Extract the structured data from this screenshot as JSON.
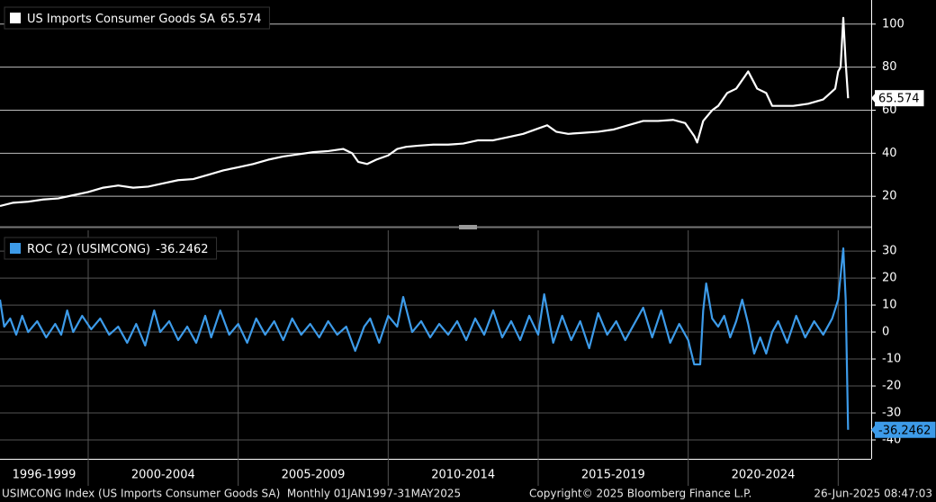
{
  "chart_data": [
    {
      "type": "line",
      "series": [
        {
          "name": "US Imports Consumer Goods SA",
          "color": "#ffffff",
          "x": [
            1997.06,
            1997.5,
            1998.0,
            1998.5,
            1999.0,
            1999.5,
            2000.0,
            2000.5,
            2001.0,
            2001.5,
            2002.0,
            2002.5,
            2003.0,
            2003.5,
            2004.0,
            2004.5,
            2005.0,
            2005.5,
            2006.0,
            2006.5,
            2007.0,
            2007.5,
            2008.0,
            2008.5,
            2008.8,
            2009.0,
            2009.3,
            2009.6,
            2010.0,
            2010.3,
            2010.6,
            2011.0,
            2011.5,
            2012.0,
            2012.5,
            2013.0,
            2013.5,
            2014.0,
            2014.5,
            2015.0,
            2015.3,
            2015.6,
            2016.0,
            2016.5,
            2017.0,
            2017.5,
            2018.0,
            2018.5,
            2019.0,
            2019.5,
            2019.9,
            2020.2,
            2020.3,
            2020.5,
            2020.8,
            2021.0,
            2021.3,
            2021.6,
            2021.9,
            2022.0,
            2022.3,
            2022.6,
            2022.8,
            2023.0,
            2023.5,
            2024.0,
            2024.5,
            2024.9,
            2025.0,
            2025.08,
            2025.17,
            2025.25,
            2025.33
          ],
          "values": [
            15.5,
            17,
            17.5,
            18.5,
            19,
            20.5,
            22,
            24,
            25,
            24,
            24.5,
            26,
            27.5,
            28,
            30,
            32,
            33.5,
            35,
            37,
            38.5,
            39.5,
            40.5,
            41,
            42,
            40,
            36,
            35,
            37,
            39,
            42,
            43,
            43.5,
            44,
            44,
            44.5,
            46,
            46,
            47.5,
            49,
            51.5,
            53,
            50,
            49,
            49.5,
            50,
            51,
            53,
            55,
            55,
            55.5,
            54,
            48,
            45,
            55,
            60,
            62,
            68,
            70,
            76,
            78,
            70,
            68,
            62,
            62,
            62,
            63,
            65,
            70,
            78,
            80,
            102.9,
            82,
            65.574
          ]
        }
      ],
      "xlim": [
        1997.06,
        2026.1
      ],
      "ylim": [
        6.7,
        111.2
      ],
      "yticks": [
        20,
        40,
        60,
        80,
        100
      ],
      "grid": true
    },
    {
      "type": "line",
      "series": [
        {
          "name": "ROC (2) (USIMCONG)",
          "color": "#3d9be9",
          "x": [
            1997.06,
            1997.2,
            1997.4,
            1997.6,
            1997.8,
            1998.0,
            1998.3,
            1998.6,
            1998.9,
            1999.1,
            1999.3,
            1999.5,
            1999.8,
            2000.1,
            2000.4,
            2000.7,
            2001.0,
            2001.3,
            2001.6,
            2001.9,
            2002.2,
            2002.4,
            2002.7,
            2003.0,
            2003.3,
            2003.6,
            2003.9,
            2004.1,
            2004.4,
            2004.7,
            2005.0,
            2005.3,
            2005.6,
            2005.9,
            2006.2,
            2006.5,
            2006.8,
            2007.1,
            2007.4,
            2007.7,
            2008.0,
            2008.3,
            2008.6,
            2008.9,
            2009.2,
            2009.4,
            2009.7,
            2010.0,
            2010.3,
            2010.5,
            2010.8,
            2011.1,
            2011.4,
            2011.7,
            2012.0,
            2012.3,
            2012.6,
            2012.9,
            2013.2,
            2013.5,
            2013.8,
            2014.1,
            2014.4,
            2014.7,
            2015.0,
            2015.2,
            2015.5,
            2015.8,
            2016.1,
            2016.4,
            2016.7,
            2017.0,
            2017.3,
            2017.6,
            2017.9,
            2018.2,
            2018.5,
            2018.8,
            2019.1,
            2019.4,
            2019.7,
            2020.0,
            2020.2,
            2020.4,
            2020.5,
            2020.6,
            2020.8,
            2021.0,
            2021.2,
            2021.4,
            2021.6,
            2021.8,
            2022.0,
            2022.2,
            2022.4,
            2022.6,
            2022.8,
            2023.0,
            2023.3,
            2023.6,
            2023.9,
            2024.2,
            2024.5,
            2024.8,
            2025.0,
            2025.17,
            2025.25,
            2025.33
          ],
          "values": [
            12,
            2,
            5,
            -1,
            6,
            0,
            4,
            -2,
            3,
            -1,
            8,
            0,
            6,
            1,
            5,
            -1,
            2,
            -4,
            3,
            -5,
            8,
            0,
            4,
            -3,
            2,
            -4,
            6,
            -2,
            8,
            -1,
            3,
            -4,
            5,
            -1,
            4,
            -3,
            5,
            -1,
            3,
            -2,
            4,
            -1,
            2,
            -7,
            2,
            5,
            -4,
            6,
            2,
            13,
            0,
            4,
            -2,
            3,
            -1,
            4,
            -3,
            5,
            -1,
            8,
            -2,
            4,
            -3,
            6,
            -1,
            14,
            -4,
            6,
            -3,
            4,
            -6,
            7,
            -1,
            4,
            -3,
            3,
            9,
            -2,
            8,
            -4,
            3,
            -3,
            -12,
            -12,
            8,
            18,
            5,
            2,
            6,
            -2,
            4,
            12,
            3,
            -8,
            -2,
            -8,
            0,
            4,
            -4,
            6,
            -2,
            4,
            -1,
            5,
            12,
            31,
            12,
            -36.2462
          ]
        }
      ],
      "xlim": [
        1997.06,
        2026.1
      ],
      "ylim": [
        -47,
        37.7
      ],
      "yticks": [
        -40,
        -30,
        -20,
        -10,
        0,
        10,
        20,
        30
      ],
      "grid": true,
      "period_boundaries": [
        2000,
        2005,
        2010,
        2015,
        2020,
        2025
      ],
      "period_labels": [
        "1996-1999",
        "2000-2004",
        "2005-2009",
        "2010-2014",
        "2015-2019",
        "2020-2024"
      ]
    }
  ],
  "footer": {
    "left": "USIMCONG Index (US Imports Consumer Goods SA)  Monthly 01JAN1997-31MAY2025",
    "center": "Copyright© 2025 Bloomberg Finance L.P.",
    "right": "26-Jun-2025 08:47:03"
  }
}
